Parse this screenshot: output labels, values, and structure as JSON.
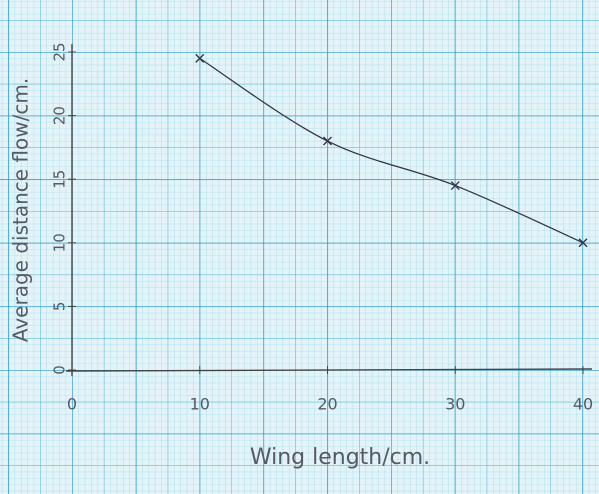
{
  "chart_data": {
    "type": "line",
    "x_label": "Wing length/cm.",
    "y_label": "Average distance flow/cm.",
    "x": [
      10,
      20,
      30,
      40
    ],
    "series": [
      {
        "values": [
          24.5,
          18,
          14.5,
          10
        ],
        "color": "#333344"
      }
    ],
    "xlim": [
      0,
      40
    ],
    "ylim": [
      0,
      25
    ],
    "xticks": [
      0,
      10,
      20,
      30,
      40
    ],
    "yticks": [
      0,
      5,
      10,
      15,
      20,
      25
    ]
  }
}
